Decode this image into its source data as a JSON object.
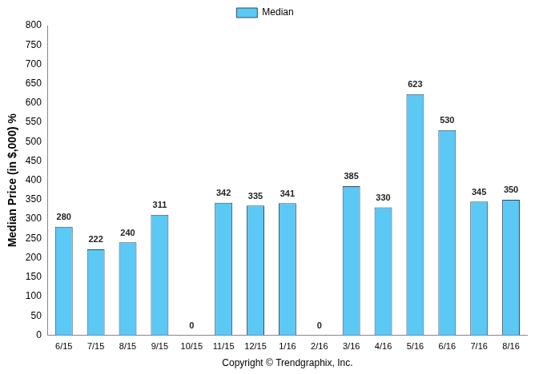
{
  "chart_data": {
    "type": "bar",
    "y_label": "Median Price (in $,000) %",
    "x_label": "Copyright © Trendgraphix, Inc.",
    "categories": [
      "6/15",
      "7/15",
      "8/15",
      "9/15",
      "10/15",
      "11/15",
      "12/15",
      "1/16",
      "2/16",
      "3/16",
      "4/16",
      "5/16",
      "6/16",
      "7/16",
      "8/16"
    ],
    "series": [
      {
        "name": "Median",
        "color": "#5bc8f5",
        "values": [
          280,
          222,
          240,
          311,
          0,
          342,
          335,
          341,
          0,
          385,
          330,
          623,
          530,
          345,
          350
        ]
      }
    ],
    "ylim": [
      0,
      800
    ],
    "yticks": [
      0,
      50,
      100,
      150,
      200,
      250,
      300,
      350,
      400,
      450,
      500,
      550,
      600,
      650,
      700,
      750,
      800
    ],
    "grid": false,
    "legend": "top",
    "data_labels": true
  }
}
